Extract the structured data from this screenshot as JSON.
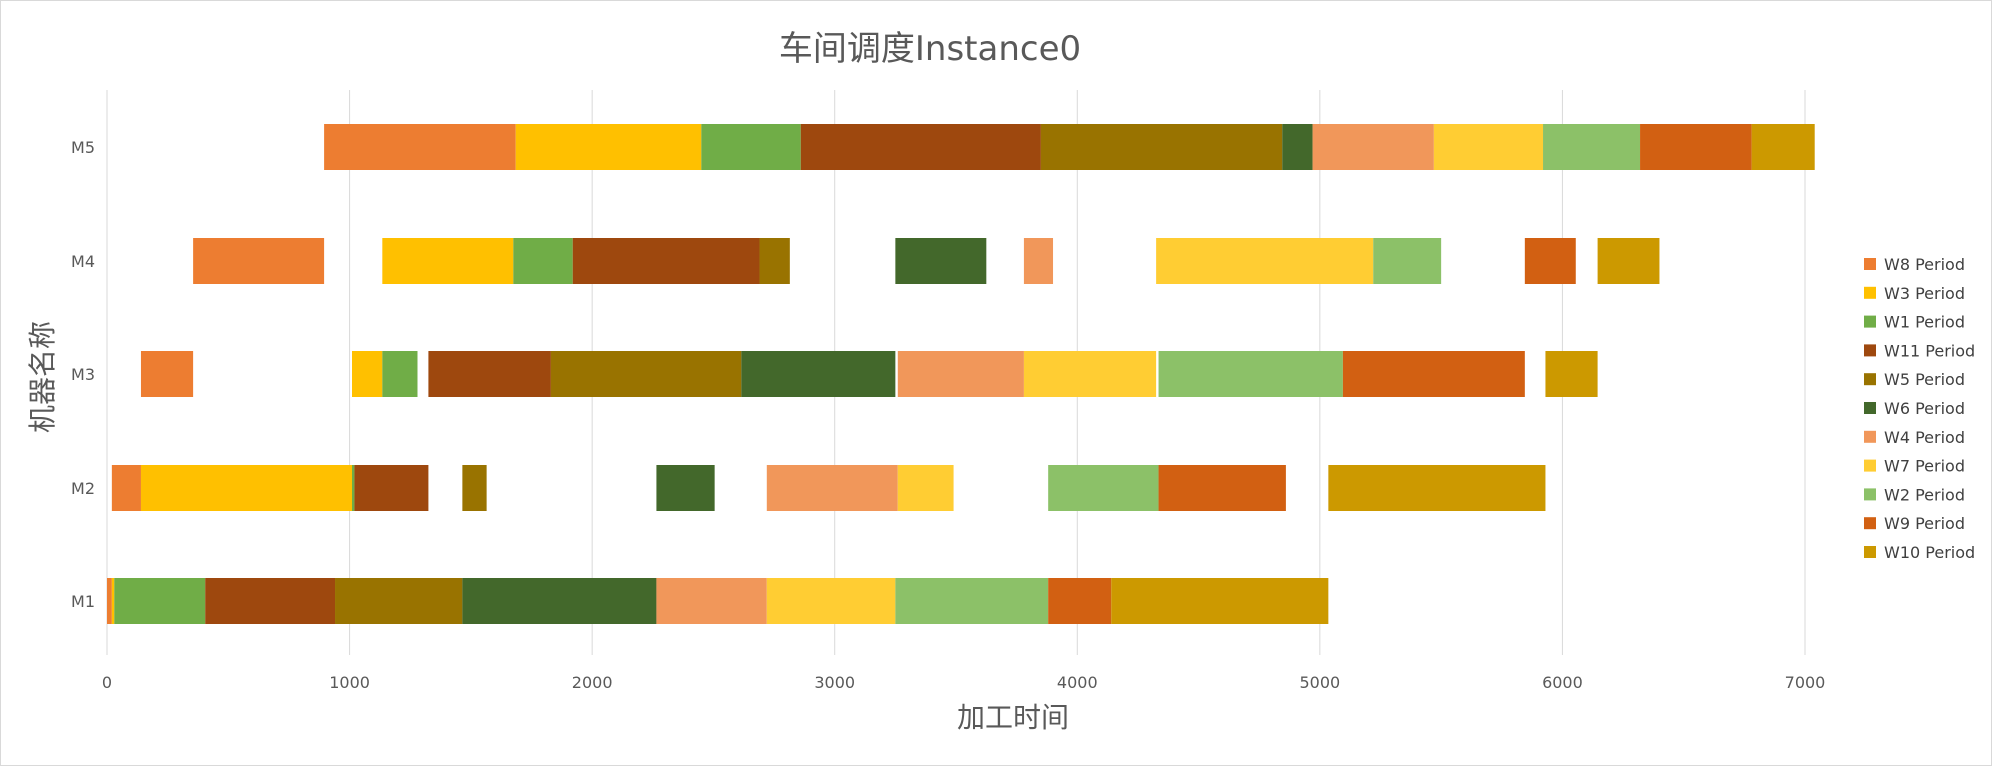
{
  "chart_data": {
    "type": "gantt",
    "title": "车间调度Instance0",
    "xlabel": "加工时间",
    "ylabel": "机器名称",
    "xlim": [
      0,
      7000
    ],
    "xticks": [
      0,
      1000,
      2000,
      3000,
      4000,
      5000,
      6000,
      7000
    ],
    "grid": "vertical",
    "legend_position": "right",
    "categories": [
      "M1",
      "M2",
      "M3",
      "M4",
      "M5"
    ],
    "series": [
      {
        "name": "W8 Period",
        "color": "#ED7D31",
        "tasks": [
          {
            "machine": "M1",
            "start": 0,
            "end": 20
          },
          {
            "machine": "M2",
            "start": 20,
            "end": 140
          },
          {
            "machine": "M3",
            "start": 140,
            "end": 355
          },
          {
            "machine": "M4",
            "start": 355,
            "end": 895
          },
          {
            "machine": "M5",
            "start": 895,
            "end": 1685
          }
        ]
      },
      {
        "name": "W3 Period",
        "color": "#FFC000",
        "tasks": [
          {
            "machine": "M1",
            "start": 20,
            "end": 30
          },
          {
            "machine": "M2",
            "start": 140,
            "end": 1010
          },
          {
            "machine": "M3",
            "start": 1010,
            "end": 1135
          },
          {
            "machine": "M4",
            "start": 1135,
            "end": 1675
          },
          {
            "machine": "M5",
            "start": 1685,
            "end": 2450
          }
        ]
      },
      {
        "name": "W1 Period",
        "color": "#70AD47",
        "tasks": [
          {
            "machine": "M1",
            "start": 30,
            "end": 405
          },
          {
            "machine": "M2",
            "start": 1010,
            "end": 1020
          },
          {
            "machine": "M3",
            "start": 1135,
            "end": 1280
          },
          {
            "machine": "M4",
            "start": 1675,
            "end": 1920
          },
          {
            "machine": "M5",
            "start": 2450,
            "end": 2860
          }
        ]
      },
      {
        "name": "W11 Period",
        "color": "#9E480E",
        "tasks": [
          {
            "machine": "M1",
            "start": 405,
            "end": 940
          },
          {
            "machine": "M2",
            "start": 1020,
            "end": 1325
          },
          {
            "machine": "M3",
            "start": 1325,
            "end": 1830
          },
          {
            "machine": "M4",
            "start": 1920,
            "end": 2690
          },
          {
            "machine": "M5",
            "start": 2860,
            "end": 3850
          }
        ]
      },
      {
        "name": "W5 Period",
        "color": "#997300",
        "tasks": [
          {
            "machine": "M1",
            "start": 940,
            "end": 1465
          },
          {
            "machine": "M2",
            "start": 1465,
            "end": 1565
          },
          {
            "machine": "M3",
            "start": 1830,
            "end": 2615
          },
          {
            "machine": "M4",
            "start": 2690,
            "end": 2815
          },
          {
            "machine": "M5",
            "start": 3850,
            "end": 4845
          }
        ]
      },
      {
        "name": "W6 Period",
        "color": "#43682B",
        "tasks": [
          {
            "machine": "M1",
            "start": 1465,
            "end": 2265
          },
          {
            "machine": "M2",
            "start": 2265,
            "end": 2505
          },
          {
            "machine": "M3",
            "start": 2615,
            "end": 3250
          },
          {
            "machine": "M4",
            "start": 3250,
            "end": 3625
          },
          {
            "machine": "M5",
            "start": 4845,
            "end": 4970
          }
        ]
      },
      {
        "name": "W4 Period",
        "color": "#F1975A",
        "tasks": [
          {
            "machine": "M1",
            "start": 2265,
            "end": 2720
          },
          {
            "machine": "M2",
            "start": 2720,
            "end": 3260
          },
          {
            "machine": "M3",
            "start": 3260,
            "end": 3780
          },
          {
            "machine": "M4",
            "start": 3780,
            "end": 3900
          },
          {
            "machine": "M5",
            "start": 4970,
            "end": 5470
          }
        ]
      },
      {
        "name": "W7 Period",
        "color": "#FFCD33",
        "tasks": [
          {
            "machine": "M1",
            "start": 2720,
            "end": 3250
          },
          {
            "machine": "M2",
            "start": 3260,
            "end": 3490
          },
          {
            "machine": "M3",
            "start": 3780,
            "end": 4325
          },
          {
            "machine": "M4",
            "start": 4325,
            "end": 5220
          },
          {
            "machine": "M5",
            "start": 5470,
            "end": 5920
          }
        ]
      },
      {
        "name": "W2 Period",
        "color": "#8CC168",
        "tasks": [
          {
            "machine": "M1",
            "start": 3250,
            "end": 3880
          },
          {
            "machine": "M2",
            "start": 3880,
            "end": 4335
          },
          {
            "machine": "M3",
            "start": 4335,
            "end": 5095
          },
          {
            "machine": "M4",
            "start": 5220,
            "end": 5500
          },
          {
            "machine": "M5",
            "start": 5920,
            "end": 6320
          }
        ]
      },
      {
        "name": "W9 Period",
        "color": "#D26012",
        "tasks": [
          {
            "machine": "M1",
            "start": 3880,
            "end": 4140
          },
          {
            "machine": "M2",
            "start": 4335,
            "end": 4860
          },
          {
            "machine": "M3",
            "start": 5095,
            "end": 5845
          },
          {
            "machine": "M4",
            "start": 5845,
            "end": 6055
          },
          {
            "machine": "M5",
            "start": 6320,
            "end": 6780
          }
        ]
      },
      {
        "name": "W10 Period",
        "color": "#CC9900",
        "tasks": [
          {
            "machine": "M1",
            "start": 4140,
            "end": 5035
          },
          {
            "machine": "M2",
            "start": 5035,
            "end": 5930
          },
          {
            "machine": "M3",
            "start": 5930,
            "end": 6145
          },
          {
            "machine": "M4",
            "start": 6145,
            "end": 6400
          },
          {
            "machine": "M5",
            "start": 6780,
            "end": 7040
          }
        ]
      }
    ]
  }
}
